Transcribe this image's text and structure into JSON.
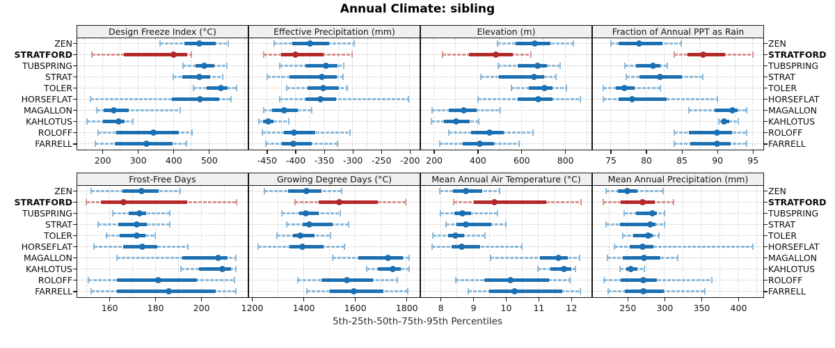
{
  "title": "Annual Climate: sibling",
  "caption": "5th-25th-50th-75th-95th Percentiles",
  "percentile_labels": [
    "5th",
    "25th",
    "50th",
    "75th",
    "95th"
  ],
  "stations": [
    "ZEN",
    "STRATFORD",
    "TUBSPRING",
    "STRAT",
    "TOLER",
    "HORSEFLAT",
    "MAGALLON",
    "KAHLOTUS",
    "ROLOFF",
    "FARRELL"
  ],
  "highlight_station": "STRATFORD",
  "colors": {
    "series_dark": "#1c6fb0",
    "series_light": "#8ab9db",
    "highlight_dark": "#b3282a",
    "highlight_light": "#d9938f",
    "strip_bg": "#f0f0f0",
    "border": "#141414",
    "gridline": "#d6d6d6",
    "row_guide": "#c4c4c4"
  },
  "chart_data": [
    {
      "type": "interval-dotplot",
      "title": "Design Freeze Index (°C)",
      "grid_pos": {
        "row": 0,
        "col": 0
      },
      "xlim": [
        129,
        607
      ],
      "ticks": [
        200,
        300,
        400,
        500
      ],
      "values": [
        [
          363,
          431,
          473,
          518,
          554
        ],
        [
          171,
          261,
          401,
          438,
          450
        ],
        [
          426,
          462,
          486,
          514,
          551
        ],
        [
          400,
          424,
          473,
          504,
          538
        ],
        [
          457,
          494,
          533,
          553,
          578
        ],
        [
          167,
          396,
          475,
          528,
          561
        ],
        [
          184,
          204,
          232,
          273,
          418
        ],
        [
          157,
          201,
          245,
          262,
          285
        ],
        [
          188,
          238,
          344,
          415,
          452
        ],
        [
          180,
          234,
          324,
          397,
          437
        ]
      ]
    },
    {
      "type": "interval-dotplot",
      "title": "Effective Precipitation (mm)",
      "grid_pos": {
        "row": 0,
        "col": 1
      },
      "xlim": [
        -481,
        -184
      ],
      "ticks": [
        -450,
        -400,
        -350,
        -300,
        -250,
        -200
      ],
      "values": [
        [
          -437,
          -406,
          -375,
          -341,
          -297
        ],
        [
          -455,
          -425,
          -400,
          -351,
          -301
        ],
        [
          -428,
          -383,
          -347,
          -327,
          -315
        ],
        [
          -449,
          -410,
          -354,
          -328,
          -317
        ],
        [
          -415,
          -379,
          -351,
          -324,
          -309
        ],
        [
          -427,
          -383,
          -356,
          -329,
          -202
        ],
        [
          -456,
          -441,
          -420,
          -396,
          -371
        ],
        [
          -464,
          -457,
          -448,
          -438,
          -412
        ],
        [
          -458,
          -420,
          -402,
          -365,
          -305
        ],
        [
          -452,
          -424,
          -404,
          -372,
          -326
        ]
      ]
    },
    {
      "type": "interval-dotplot",
      "title": "Elevation (m)",
      "grid_pos": {
        "row": 0,
        "col": 2
      },
      "xlim": [
        141,
        917
      ],
      "ticks": [
        200,
        400,
        600,
        800
      ],
      "values": [
        [
          492,
          575,
          662,
          732,
          837
        ],
        [
          239,
          359,
          484,
          560,
          643
        ],
        [
          495,
          583,
          675,
          716,
          777
        ],
        [
          415,
          497,
          659,
          704,
          758
        ],
        [
          554,
          633,
          706,
          742,
          805
        ],
        [
          401,
          583,
          677,
          742,
          868
        ],
        [
          192,
          267,
          335,
          395,
          502
        ],
        [
          189,
          246,
          303,
          363,
          405
        ],
        [
          267,
          369,
          453,
          518,
          654
        ],
        [
          227,
          332,
          411,
          476,
          591
        ]
      ]
    },
    {
      "type": "interval-dotplot",
      "title": "Fraction of Annual PPT as Rain",
      "grid_pos": {
        "row": 0,
        "col": 3
      },
      "xlim": [
        72.5,
        96.4
      ],
      "ticks": [
        75,
        80,
        85,
        90,
        95
      ],
      "values": [
        [
          75.0,
          76.1,
          79.0,
          82.3,
          84.9
        ],
        [
          84.0,
          85.8,
          88.0,
          91.1,
          95.0
        ],
        [
          77.0,
          78.6,
          81.0,
          82.0,
          83.0
        ],
        [
          77.2,
          79.1,
          82.0,
          85.0,
          88.0
        ],
        [
          74.0,
          75.7,
          77.0,
          78.4,
          82.0
        ],
        [
          74.0,
          76.1,
          78.0,
          82.9,
          90.0
        ],
        [
          86.0,
          89.6,
          92.1,
          92.9,
          94.1
        ],
        [
          90.2,
          90.6,
          91.0,
          91.7,
          93.0
        ],
        [
          84.0,
          86.0,
          90.0,
          92.1,
          94.1
        ],
        [
          84.0,
          86.2,
          90.0,
          91.9,
          94.1
        ]
      ]
    },
    {
      "type": "interval-dotplot",
      "title": "Frost-Free Days",
      "grid_pos": {
        "row": 1,
        "col": 0
      },
      "xlim": [
        146,
        220
      ],
      "ticks": [
        160,
        180,
        200
      ],
      "values": [
        [
          152,
          165.6,
          174,
          181.4,
          191
        ],
        [
          149.8,
          156.3,
          166.3,
          194,
          215.5
        ],
        [
          161.5,
          168.3,
          173,
          175.9,
          186.4
        ],
        [
          155,
          164,
          172,
          176.4,
          186.4
        ],
        [
          158.6,
          164.6,
          172,
          175.7,
          180
        ],
        [
          153.3,
          166,
          174.4,
          180.9,
          194.2
        ],
        [
          163.3,
          191.9,
          207.5,
          211.5,
          215.2
        ],
        [
          191.2,
          199,
          209.3,
          213,
          215.2
        ],
        [
          150.8,
          163.3,
          181.4,
          198.3,
          214.5
        ],
        [
          152,
          163.3,
          186,
          206.5,
          215.2
        ]
      ]
    },
    {
      "type": "interval-dotplot",
      "title": "Growing Degree Days (°C)",
      "grid_pos": {
        "row": 1,
        "col": 1
      },
      "xlim": [
        1189,
        1848
      ],
      "ticks": [
        1200,
        1400,
        1600,
        1800
      ],
      "values": [
        [
          1249,
          1339,
          1413,
          1469,
          1548
        ],
        [
          1366,
          1460,
          1539,
          1689,
          1797
        ],
        [
          1316,
          1384,
          1409,
          1460,
          1543
        ],
        [
          1336,
          1397,
          1422,
          1512,
          1575
        ],
        [
          1297,
          1359,
          1388,
          1442,
          1505
        ],
        [
          1225,
          1346,
          1395,
          1478,
          1558
        ],
        [
          1512,
          1612,
          1727,
          1785,
          1810
        ],
        [
          1646,
          1688,
          1747,
          1778,
          1809
        ],
        [
          1377,
          1469,
          1569,
          1670,
          1763
        ],
        [
          1413,
          1503,
          1596,
          1711,
          1805
        ]
      ]
    },
    {
      "type": "interval-dotplot",
      "title": "Mean Annual Air Temperature (°C)",
      "grid_pos": {
        "row": 1,
        "col": 2
      },
      "xlim": [
        7.4,
        12.6
      ],
      "ticks": [
        8,
        9,
        10,
        11,
        12
      ],
      "values": [
        [
          7.98,
          8.37,
          8.77,
          9.28,
          9.8
        ],
        [
          8.4,
          9.03,
          9.65,
          11.23,
          12.3
        ],
        [
          8.0,
          8.42,
          8.67,
          8.93,
          9.74
        ],
        [
          8.16,
          8.49,
          8.77,
          9.56,
          9.99
        ],
        [
          7.77,
          8.23,
          8.46,
          8.72,
          9.37
        ],
        [
          7.74,
          8.33,
          8.65,
          9.21,
          10.48
        ],
        [
          9.54,
          11.05,
          11.61,
          11.89,
          12.25
        ],
        [
          10.98,
          11.37,
          11.78,
          12.0,
          12.13
        ],
        [
          8.46,
          9.33,
          10.13,
          11.33,
          11.96
        ],
        [
          8.84,
          9.49,
          10.27,
          11.72,
          12.28
        ]
      ]
    },
    {
      "type": "interval-dotplot",
      "title": "Mean Annual Precipitation (mm)",
      "grid_pos": {
        "row": 1,
        "col": 3
      },
      "xlim": [
        203,
        433
      ],
      "ticks": [
        250,
        300,
        350,
        400
      ],
      "values": [
        [
          221,
          237,
          250,
          263,
          298
        ],
        [
          217,
          241,
          270,
          287,
          312
        ],
        [
          245,
          261,
          284,
          290,
          300
        ],
        [
          221,
          240,
          281,
          288,
          300
        ],
        [
          244,
          258,
          278,
          284,
          293
        ],
        [
          232,
          253,
          270,
          285,
          420
        ],
        [
          223,
          244,
          272,
          294,
          318
        ],
        [
          240,
          248,
          254,
          263,
          273
        ],
        [
          218,
          241,
          271,
          290,
          364
        ],
        [
          224,
          246,
          271,
          299,
          355
        ]
      ]
    }
  ]
}
